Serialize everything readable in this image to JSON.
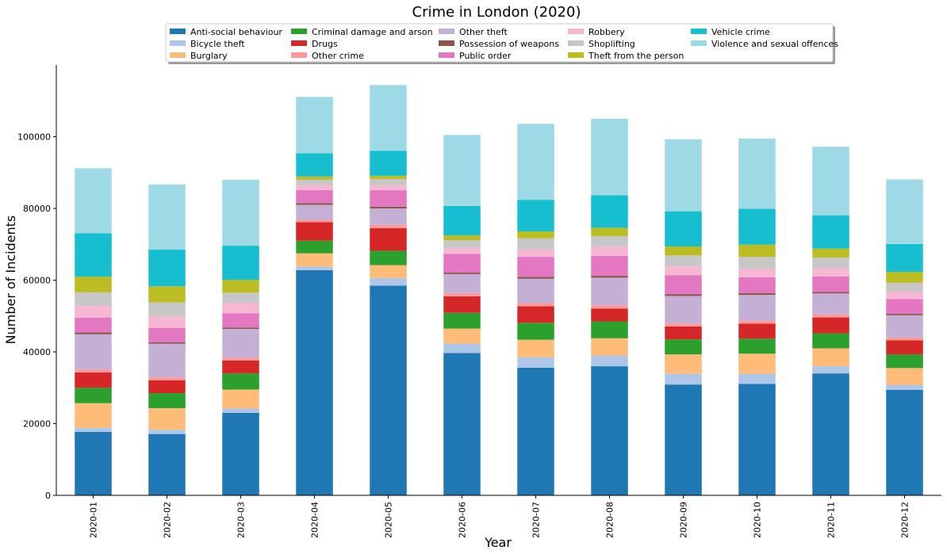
{
  "chart_data": {
    "type": "bar",
    "stacked": true,
    "title": "Crime in London (2020)",
    "xlabel": "Year",
    "ylabel": "Number of Incidents",
    "ylim": [
      0,
      120000
    ],
    "yticks": [
      0,
      20000,
      40000,
      60000,
      80000,
      100000
    ],
    "ytick_labels": [
      "0",
      "20000",
      "40000",
      "60000",
      "80000",
      "100000"
    ],
    "grid": false,
    "legend_position": "top-center",
    "categories": [
      "2020-01",
      "2020-02",
      "2020-03",
      "2020-04",
      "2020-05",
      "2020-06",
      "2020-07",
      "2020-08",
      "2020-09",
      "2020-10",
      "2020-11",
      "2020-12"
    ],
    "series": [
      {
        "name": "Anti-social behaviour",
        "color": "#1f77b4",
        "values": [
          17700,
          17100,
          23000,
          62800,
          58500,
          39700,
          35600,
          36000,
          30900,
          31100,
          34000,
          29400
        ]
      },
      {
        "name": "Bicycle theft",
        "color": "#aec7e8",
        "values": [
          1100,
          1200,
          1200,
          1000,
          2100,
          2600,
          2900,
          3000,
          3000,
          2800,
          2000,
          1400
        ]
      },
      {
        "name": "Burglary",
        "color": "#ffbb78",
        "values": [
          6900,
          6000,
          5300,
          3700,
          3600,
          4200,
          4900,
          4800,
          5400,
          5600,
          5000,
          4700
        ]
      },
      {
        "name": "Criminal damage and arson",
        "color": "#2ca02c",
        "values": [
          4300,
          4200,
          4500,
          3500,
          4000,
          4400,
          4700,
          4700,
          4200,
          4200,
          4200,
          3800
        ]
      },
      {
        "name": "Drugs",
        "color": "#d62728",
        "values": [
          4300,
          3600,
          3600,
          5200,
          6300,
          4600,
          4600,
          3600,
          3600,
          4200,
          4400,
          3900
        ]
      },
      {
        "name": "Other crime",
        "color": "#ff9896",
        "values": [
          800,
          800,
          800,
          600,
          900,
          900,
          900,
          900,
          800,
          800,
          800,
          800
        ]
      },
      {
        "name": "Other theft",
        "color": "#c5b0d5",
        "values": [
          9800,
          9400,
          8000,
          4200,
          4600,
          5300,
          6800,
          7700,
          7700,
          7200,
          5900,
          6200
        ]
      },
      {
        "name": "Possession of weapons",
        "color": "#8c564b",
        "values": [
          500,
          400,
          400,
          500,
          500,
          400,
          500,
          500,
          500,
          500,
          400,
          400
        ]
      },
      {
        "name": "Public order",
        "color": "#e377c2",
        "values": [
          4100,
          4000,
          4000,
          3600,
          4600,
          5200,
          5600,
          5600,
          5300,
          4400,
          4300,
          4100
        ]
      },
      {
        "name": "Robbery",
        "color": "#f7b6d2",
        "values": [
          3300,
          3200,
          2900,
          1300,
          1300,
          1700,
          2100,
          2600,
          2400,
          2300,
          2400,
          2100
        ]
      },
      {
        "name": "Shoplifting",
        "color": "#c7c7c7",
        "values": [
          3800,
          3900,
          2800,
          1600,
          1800,
          2100,
          3100,
          2900,
          3100,
          3400,
          2900,
          2500
        ]
      },
      {
        "name": "Theft from the person",
        "color": "#bcbd22",
        "values": [
          4400,
          4500,
          3600,
          900,
          900,
          1400,
          1900,
          2300,
          2500,
          3400,
          2500,
          3000
        ]
      },
      {
        "name": "Vehicle crime",
        "color": "#17becf",
        "values": [
          12100,
          10200,
          9500,
          6500,
          7000,
          8200,
          8800,
          9100,
          9800,
          10000,
          9300,
          7800
        ]
      },
      {
        "name": "Violence and sexual offences",
        "color": "#9edae5",
        "values": [
          18100,
          18200,
          18400,
          15700,
          18300,
          19800,
          21200,
          21300,
          20100,
          19600,
          19100,
          18000
        ]
      }
    ]
  }
}
